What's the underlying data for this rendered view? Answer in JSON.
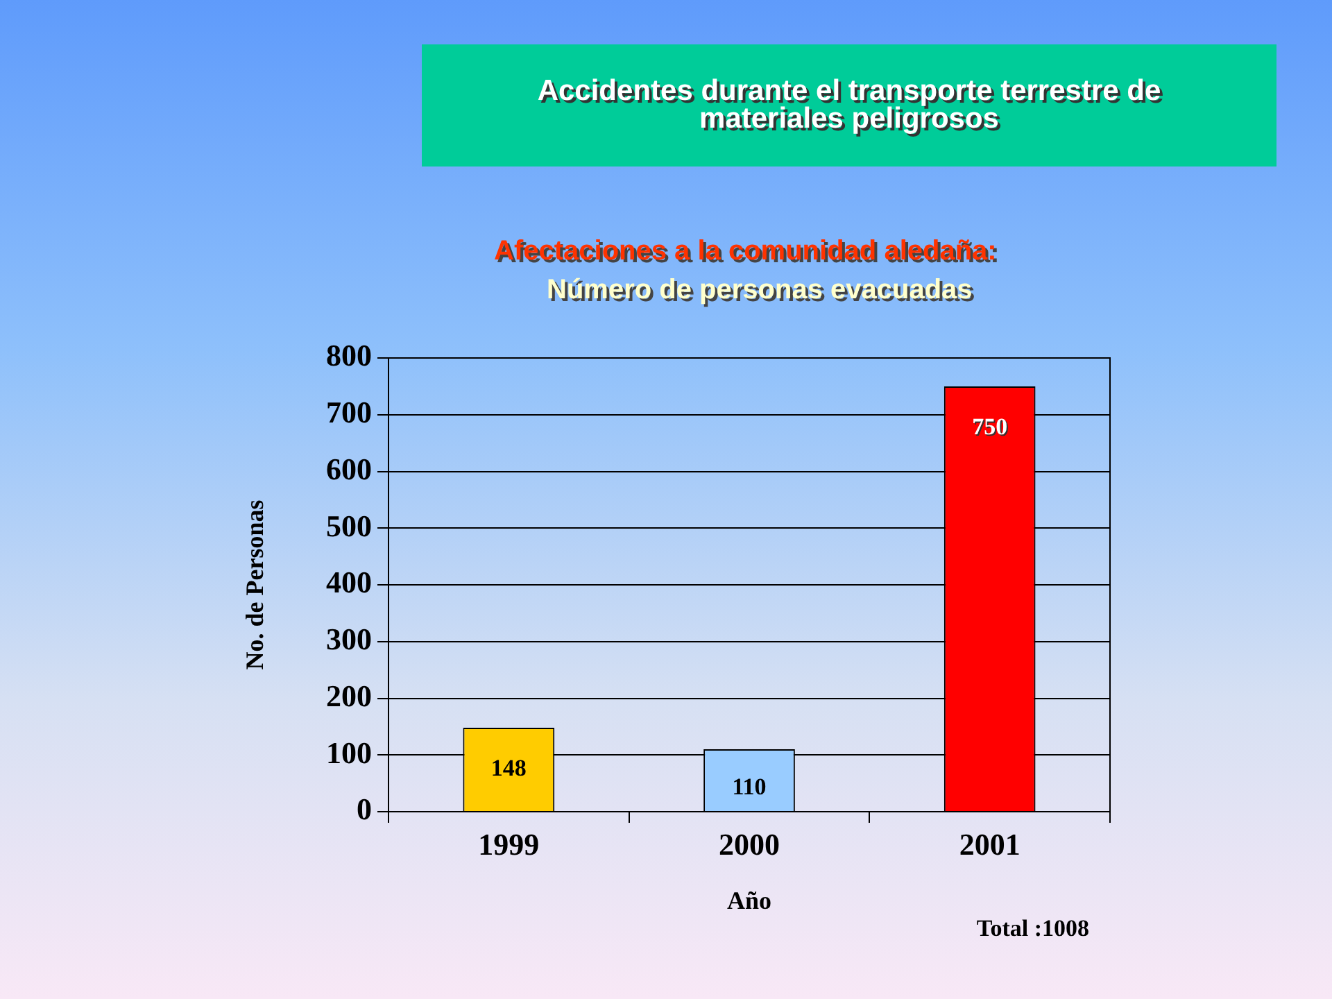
{
  "chart_data": {
    "type": "bar",
    "title": "Accidentes durante el transporte terrestre de materiales peligrosos",
    "subtitle": "Afectaciones a la comunidad aledaña:\nNúmero de personas evacuadas",
    "xlabel": "Año",
    "ylabel": "No. de Personas",
    "annotations": [
      "Total :1008"
    ],
    "categories": [
      "1999",
      "2000",
      "2001"
    ],
    "values": [
      148,
      110,
      750
    ],
    "colors": [
      "#ffcc00",
      "#99ccff",
      "#ff0000"
    ],
    "ylim": [
      0,
      800
    ],
    "yticks": [
      0,
      100,
      200,
      300,
      400,
      500,
      600,
      700,
      800
    ],
    "grid": "y",
    "data_labels": true
  }
}
